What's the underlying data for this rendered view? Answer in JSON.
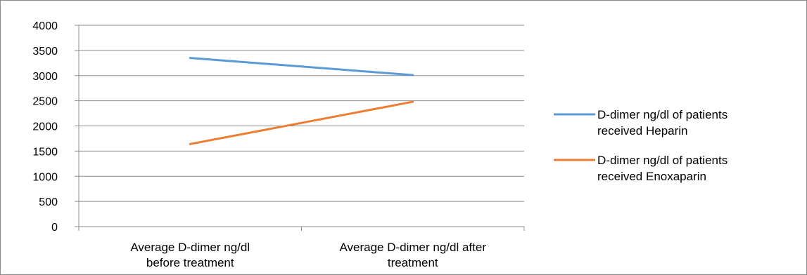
{
  "chart_data": {
    "type": "line",
    "categories": [
      [
        "Average D-dimer ng/dl",
        "before treatment"
      ],
      [
        "Average D-dimer ng/dl after",
        "treatment"
      ]
    ],
    "series": [
      {
        "name": [
          "D-dimer ng/dl of patients",
          "received Heparin"
        ],
        "values": [
          3350,
          3010
        ],
        "color": "#5b9bd5"
      },
      {
        "name": [
          "D-dimer ng/dl of patients",
          "received Enoxaparin"
        ],
        "values": [
          1640,
          2480
        ],
        "color": "#ed7d31"
      }
    ],
    "yticks": [
      "0",
      "500",
      "1000",
      "1500",
      "2000",
      "2500",
      "3000",
      "3500",
      "4000"
    ],
    "ylim": [
      0,
      4000
    ],
    "grid": true,
    "legend": "right"
  }
}
